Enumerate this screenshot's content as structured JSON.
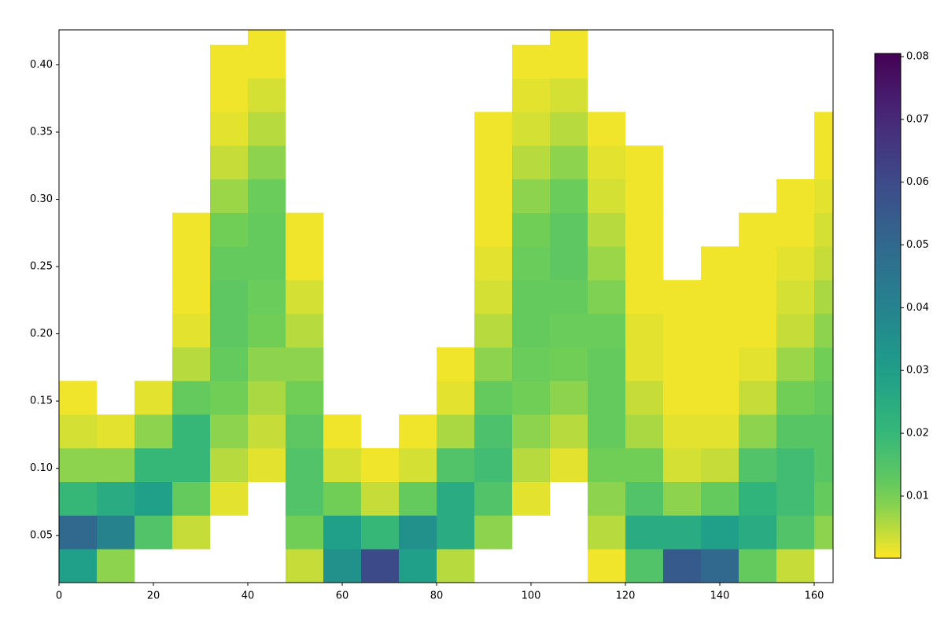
{
  "chart_data": {
    "type": "heatmap",
    "colormap": "viridis_r",
    "xlim": [
      0,
      164
    ],
    "xticks": [
      0,
      20,
      40,
      60,
      80,
      100,
      120,
      140,
      160
    ],
    "ylim": [
      0.015,
      0.426
    ],
    "yticks": [
      0.05,
      {
        "value": 0.1,
        "label": "0.10"
      },
      0.15,
      {
        "value": 0.2,
        "label": "0.20"
      },
      0.25,
      {
        "value": 0.3,
        "label": "0.30"
      },
      0.35,
      {
        "value": 0.4,
        "label": "0.40"
      }
    ],
    "clim": [
      0.0001,
      0.0805
    ],
    "cticks": [
      0.01,
      0.02,
      0.03,
      0.04,
      0.05,
      0.06,
      0.07,
      0.08
    ],
    "xbins": [
      0,
      8,
      16,
      24,
      32,
      40,
      48,
      56,
      64,
      72,
      80,
      88,
      96,
      104,
      112,
      120,
      128,
      136,
      144,
      152,
      160,
      164
    ],
    "ybins": [
      0.015,
      0.04,
      0.065,
      0.09,
      0.115,
      0.14,
      0.165,
      0.19,
      0.215,
      0.24,
      0.265,
      0.29,
      0.315,
      0.34,
      0.365,
      0.39,
      0.415,
      0.426
    ],
    "z": [
      [
        0.03,
        0.05,
        0.02,
        0.008,
        0.003,
        0.001,
        null,
        null,
        null,
        null,
        null,
        null,
        null,
        null,
        null,
        null,
        null
      ],
      [
        0.008,
        0.04,
        0.025,
        0.008,
        0.002,
        null,
        null,
        null,
        null,
        null,
        null,
        null,
        null,
        null,
        null,
        null,
        null
      ],
      [
        null,
        0.015,
        0.03,
        0.02,
        0.008,
        0.002,
        null,
        null,
        null,
        null,
        null,
        null,
        null,
        null,
        null,
        null,
        null
      ],
      [
        null,
        0.004,
        0.012,
        0.02,
        0.02,
        0.012,
        0.005,
        0.002,
        0.001,
        0.001,
        0.001,
        null,
        null,
        null,
        null,
        null,
        null
      ],
      [
        null,
        null,
        0.002,
        0.005,
        0.008,
        0.01,
        0.012,
        0.013,
        0.013,
        0.012,
        0.01,
        0.007,
        0.004,
        0.002,
        0.001,
        0.001,
        null
      ],
      [
        null,
        null,
        null,
        0.002,
        0.004,
        0.006,
        0.008,
        0.01,
        0.011,
        0.012,
        0.012,
        0.011,
        0.008,
        0.005,
        0.003,
        0.001,
        0.001
      ],
      [
        0.004,
        0.01,
        0.015,
        0.015,
        0.013,
        0.01,
        0.008,
        0.005,
        0.003,
        0.001,
        0.001,
        null,
        null,
        null,
        null,
        null,
        null
      ],
      [
        0.035,
        0.03,
        0.01,
        0.003,
        0.001,
        null,
        null,
        null,
        null,
        null,
        null,
        null,
        null,
        null,
        null,
        null,
        null
      ],
      [
        0.06,
        0.02,
        0.004,
        0.001,
        null,
        null,
        null,
        null,
        null,
        null,
        null,
        null,
        null,
        null,
        null,
        null,
        null
      ],
      [
        0.03,
        0.035,
        0.012,
        0.003,
        0.001,
        null,
        null,
        null,
        null,
        null,
        null,
        null,
        null,
        null,
        null,
        null,
        null
      ],
      [
        0.005,
        0.025,
        0.025,
        0.015,
        0.006,
        0.002,
        0.001,
        null,
        null,
        null,
        null,
        null,
        null,
        null,
        null,
        null,
        null
      ],
      [
        null,
        0.008,
        0.015,
        0.018,
        0.016,
        0.012,
        0.008,
        0.005,
        0.003,
        0.002,
        0.001,
        0.001,
        0.001,
        0.001,
        null,
        null,
        null
      ],
      [
        null,
        null,
        0.002,
        0.005,
        0.008,
        0.01,
        0.011,
        0.012,
        0.012,
        0.011,
        0.01,
        0.008,
        0.005,
        0.003,
        0.002,
        0.001,
        null
      ],
      [
        null,
        null,
        null,
        0.002,
        0.005,
        0.008,
        0.01,
        0.011,
        0.012,
        0.013,
        0.013,
        0.011,
        0.008,
        0.005,
        0.003,
        0.001,
        0.001
      ],
      [
        0.001,
        0.005,
        0.008,
        0.01,
        0.012,
        0.012,
        0.012,
        0.011,
        0.009,
        0.007,
        0.005,
        0.003,
        0.002,
        0.001,
        null,
        null,
        null
      ],
      [
        0.015,
        0.025,
        0.015,
        0.01,
        0.006,
        0.004,
        0.002,
        0.002,
        0.001,
        0.001,
        0.001,
        0.001,
        0.001,
        null,
        null,
        null,
        null
      ],
      [
        0.055,
        0.025,
        0.008,
        0.003,
        0.002,
        0.001,
        0.001,
        0.001,
        0.001,
        null,
        null,
        null,
        null,
        null,
        null,
        null,
        null
      ],
      [
        0.05,
        0.03,
        0.012,
        0.004,
        0.002,
        0.001,
        0.001,
        0.001,
        0.001,
        0.001,
        null,
        null,
        null,
        null,
        null,
        null,
        null
      ],
      [
        0.012,
        0.025,
        0.022,
        0.015,
        0.008,
        0.004,
        0.002,
        0.001,
        0.001,
        0.001,
        0.001,
        null,
        null,
        null,
        null,
        null,
        null
      ],
      [
        0.004,
        0.015,
        0.018,
        0.018,
        0.014,
        0.01,
        0.007,
        0.004,
        0.003,
        0.002,
        0.001,
        0.001,
        null,
        null,
        null,
        null,
        null
      ],
      [
        null,
        0.008,
        0.012,
        0.014,
        0.014,
        0.012,
        0.01,
        0.008,
        0.006,
        0.004,
        0.003,
        0.002,
        0.001,
        0.001,
        null,
        null,
        null
      ]
    ]
  }
}
